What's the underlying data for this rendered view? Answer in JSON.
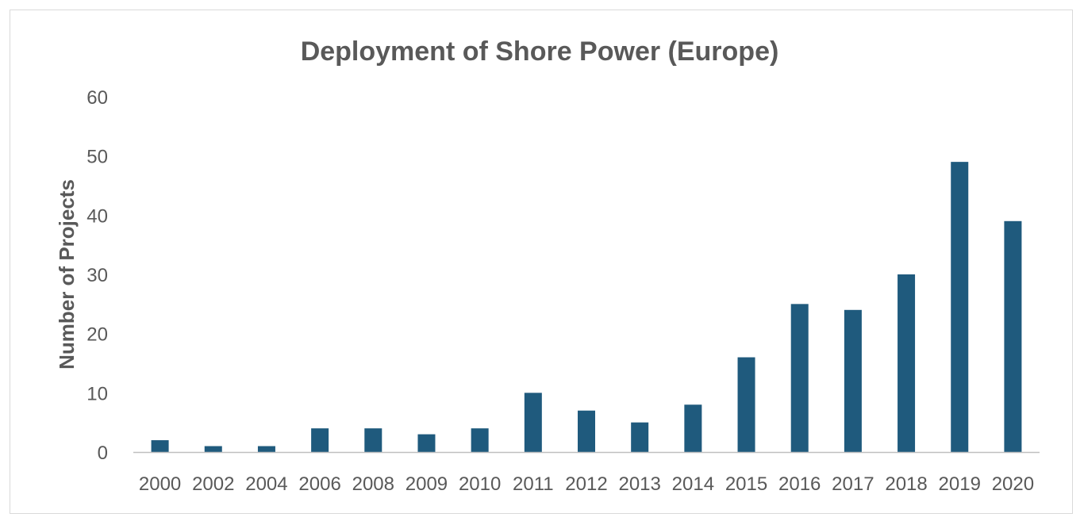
{
  "chart_data": {
    "type": "bar",
    "title": "Deployment of Shore Power (Europe)",
    "xlabel": "",
    "ylabel": "Number of Projects",
    "categories": [
      "2000",
      "2002",
      "2004",
      "2006",
      "2008",
      "2009",
      "2010",
      "2011",
      "2012",
      "2013",
      "2014",
      "2015",
      "2016",
      "2017",
      "2018",
      "2019",
      "2020"
    ],
    "values": [
      2,
      1,
      1,
      4,
      4,
      3,
      4,
      10,
      7,
      5,
      8,
      16,
      25,
      24,
      30,
      49,
      39
    ],
    "ylim": [
      0,
      60
    ],
    "yticks": [
      0,
      10,
      20,
      30,
      40,
      50,
      60
    ],
    "grid": false,
    "legend": "none",
    "bar_color": "#1F5A7D"
  }
}
